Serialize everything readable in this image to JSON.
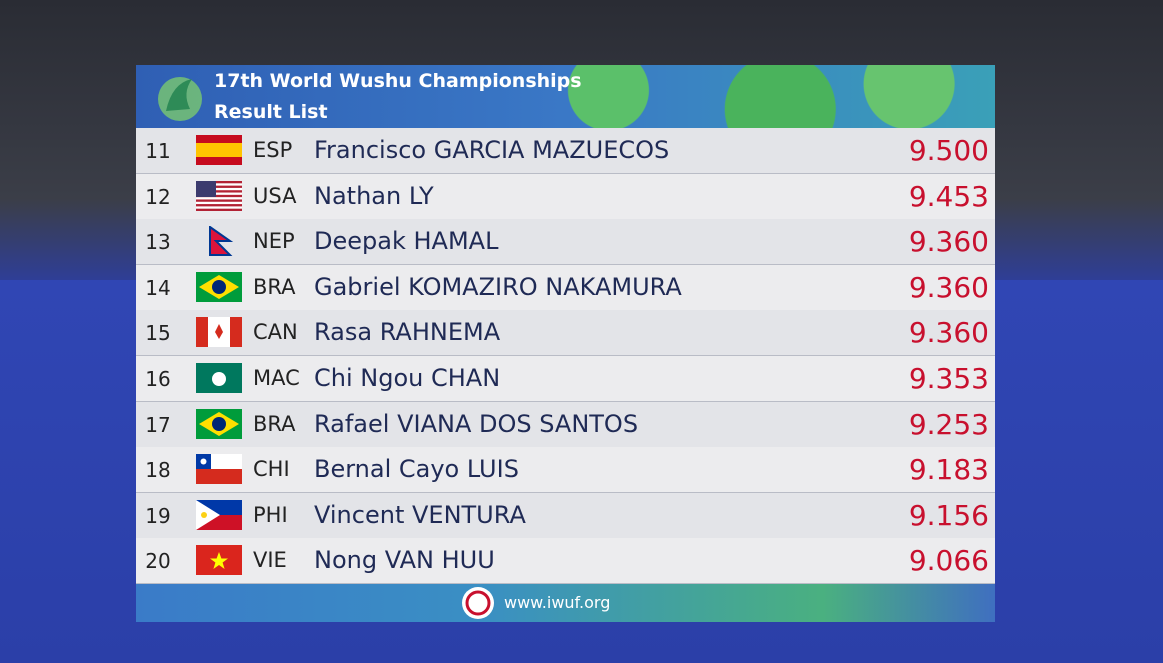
{
  "header": {
    "title": "17th World Wushu Championships",
    "subtitle": "Result List"
  },
  "table": {
    "rows": [
      [
        "11",
        "ESP",
        "Francisco GARCIA MAZUECOS",
        "9.500"
      ],
      [
        "12",
        "USA",
        "Nathan LY",
        "9.453"
      ],
      [
        "13",
        "NEP",
        "Deepak HAMAL",
        "9.360"
      ],
      [
        "14",
        "BRA",
        "Gabriel KOMAZIRO NAKAMURA",
        "9.360"
      ],
      [
        "15",
        "CAN",
        "Rasa RAHNEMA",
        "9.360"
      ],
      [
        "16",
        "MAC",
        "Chi Ngou CHAN",
        "9.353"
      ],
      [
        "17",
        "BRA",
        "Rafael VIANA DOS SANTOS",
        "9.253"
      ],
      [
        "18",
        "CHI",
        "Bernal Cayo LUIS",
        "9.183"
      ],
      [
        "19",
        "PHI",
        "Vincent VENTURA",
        "9.156"
      ],
      [
        "20",
        "VIE",
        "Nong VAN HUU",
        "9.066"
      ]
    ]
  },
  "footer": {
    "url": "www.iwuf.org"
  }
}
